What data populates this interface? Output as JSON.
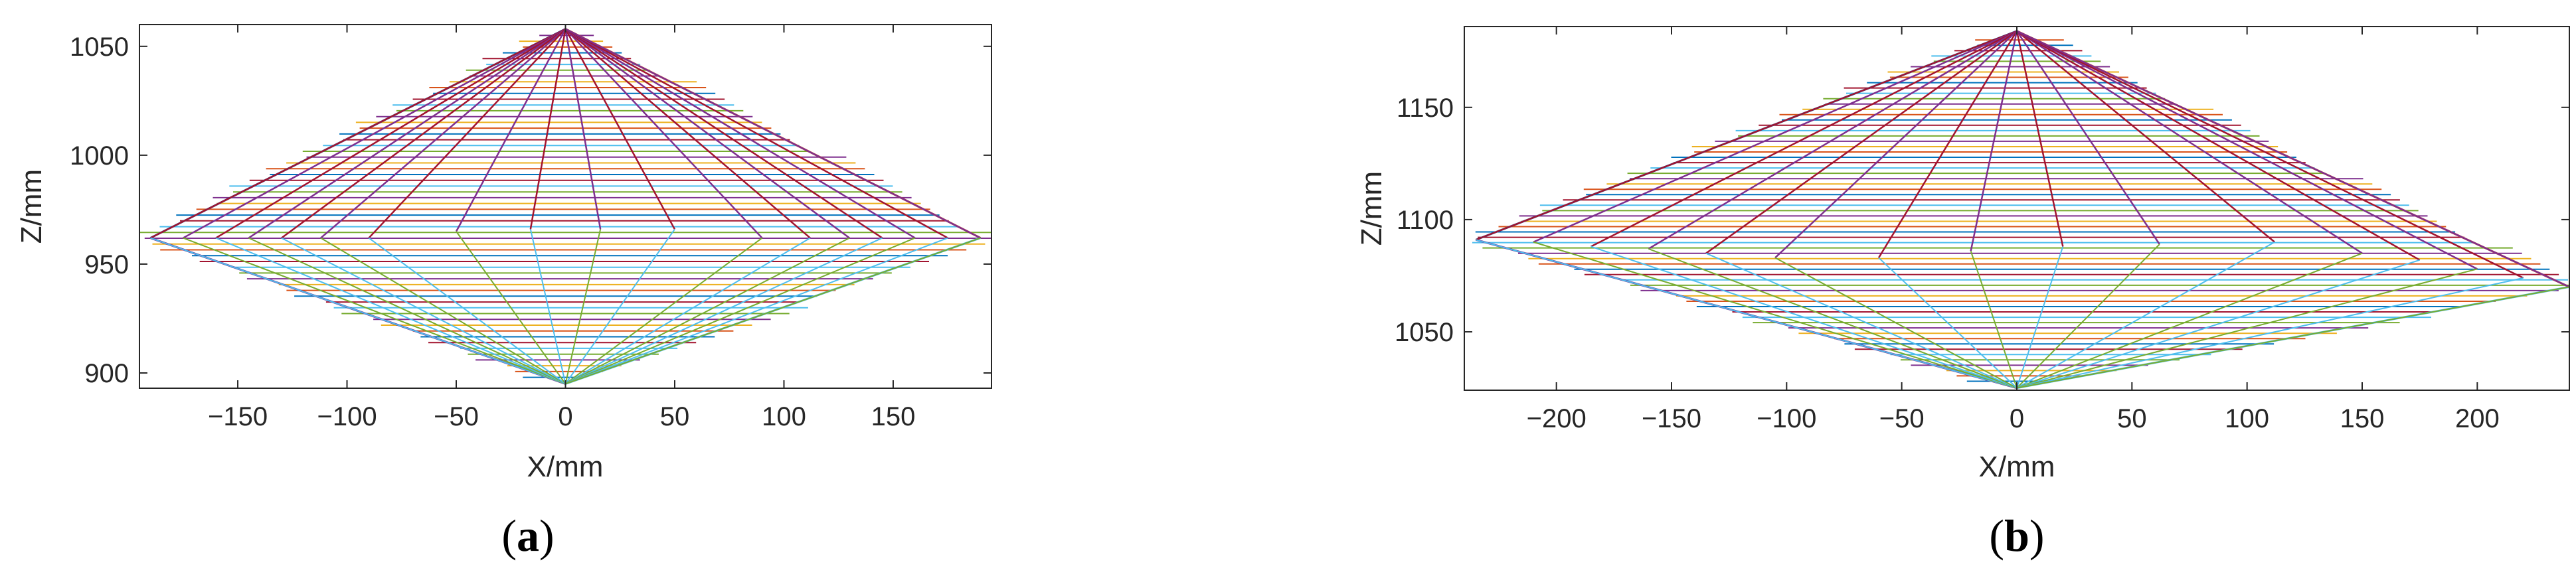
{
  "colors": [
    "#0072BD",
    "#D95319",
    "#EDB120",
    "#7E2F8E",
    "#77AC30",
    "#4DBEEE",
    "#A2142F"
  ],
  "chart_data": [
    {
      "type": "line",
      "panel_label": "a",
      "xlabel": "X/mm",
      "ylabel": "Z/mm",
      "xlim": [
        -195,
        195
      ],
      "ylim": [
        893,
        1060
      ],
      "xticks": [
        -150,
        -100,
        -50,
        0,
        50,
        100,
        150
      ],
      "xtick_labels": [
        "−150",
        "−100",
        "−50",
        "0",
        "50",
        "100",
        "150"
      ],
      "yticks": [
        900,
        950,
        1000,
        1050
      ],
      "ytick_labels": [
        "900",
        "950",
        "1000",
        "1050"
      ],
      "grid": false,
      "apex_top": [
        0,
        1058
      ],
      "apex_bottom": [
        0,
        895
      ],
      "edge_left": [
        -190,
        962
      ],
      "edge_right": [
        190,
        962
      ],
      "horizontal_lines": {
        "z_start": 898,
        "z_end": 1055,
        "count": 60
      },
      "rays": [
        {
          "x": -190,
          "z": 962
        },
        {
          "x": -175,
          "z": 962
        },
        {
          "x": -160,
          "z": 962
        },
        {
          "x": -145,
          "z": 962
        },
        {
          "x": -130,
          "z": 962
        },
        {
          "x": -112,
          "z": 962
        },
        {
          "x": -90,
          "z": 962
        },
        {
          "x": -50,
          "z": 965
        },
        {
          "x": -16,
          "z": 966
        },
        {
          "x": 16,
          "z": 966
        },
        {
          "x": 50,
          "z": 966
        },
        {
          "x": 90,
          "z": 962
        },
        {
          "x": 112,
          "z": 962
        },
        {
          "x": 130,
          "z": 962
        },
        {
          "x": 145,
          "z": 962
        },
        {
          "x": 160,
          "z": 962
        },
        {
          "x": 175,
          "z": 962
        },
        {
          "x": 190,
          "z": 962
        }
      ]
    },
    {
      "type": "line",
      "panel_label": "b",
      "xlabel": "X/mm",
      "ylabel": "Z/mm",
      "xlim": [
        -240,
        240
      ],
      "ylim": [
        1024,
        1186
      ],
      "xticks": [
        -200,
        -150,
        -100,
        -50,
        0,
        50,
        100,
        150,
        200
      ],
      "xtick_labels": [
        "−200",
        "−150",
        "−100",
        "−50",
        "0",
        "50",
        "100",
        "150",
        "200"
      ],
      "yticks": [
        1050,
        1100,
        1150
      ],
      "ytick_labels": [
        "1050",
        "1100",
        "1150"
      ],
      "grid": false,
      "apex_top": [
        0,
        1184
      ],
      "apex_bottom": [
        0,
        1025
      ],
      "edge_left": [
        -235,
        1091
      ],
      "edge_right": [
        240,
        1070
      ],
      "horizontal_lines": {
        "z_start": 1028,
        "z_end": 1180,
        "count": 65
      },
      "rays": [
        {
          "x": -235,
          "z": 1091
        },
        {
          "x": -210,
          "z": 1090
        },
        {
          "x": -185,
          "z": 1088
        },
        {
          "x": -160,
          "z": 1087
        },
        {
          "x": -135,
          "z": 1085
        },
        {
          "x": -105,
          "z": 1083
        },
        {
          "x": -60,
          "z": 1083
        },
        {
          "x": -20,
          "z": 1086
        },
        {
          "x": 20,
          "z": 1088
        },
        {
          "x": 62,
          "z": 1089
        },
        {
          "x": 112,
          "z": 1090
        },
        {
          "x": 150,
          "z": 1085
        },
        {
          "x": 175,
          "z": 1082
        },
        {
          "x": 200,
          "z": 1078
        },
        {
          "x": 220,
          "z": 1074
        },
        {
          "x": 240,
          "z": 1070
        }
      ]
    }
  ]
}
